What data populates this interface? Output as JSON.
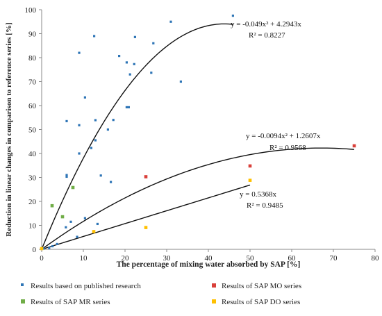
{
  "chart_data": {
    "type": "scatter",
    "xlabel": "The percentage of mixing water absorbed by SAP [%]",
    "ylabel": "Reduction in linear changes in comparison to reference series [%]",
    "xlim": [
      0,
      80
    ],
    "ylim": [
      0,
      100
    ],
    "x_ticks": [
      0,
      10,
      20,
      30,
      40,
      50,
      60,
      70,
      80
    ],
    "y_ticks": [
      0,
      10,
      20,
      30,
      40,
      50,
      60,
      70,
      80,
      90,
      100
    ],
    "grid": false,
    "legend_position": "bottom",
    "series": [
      {
        "name": "Results based on published research",
        "color": "#2e75b6",
        "marker": "square",
        "points": [
          [
            45.9,
            97.5
          ],
          [
            31.0,
            95.0
          ],
          [
            12.6,
            89.0
          ],
          [
            22.4,
            88.6
          ],
          [
            26.8,
            86.0
          ],
          [
            9.0,
            82.0
          ],
          [
            18.6,
            80.7
          ],
          [
            20.4,
            78.0
          ],
          [
            22.2,
            77.3
          ],
          [
            21.2,
            73.0
          ],
          [
            26.3,
            73.7
          ],
          [
            33.4,
            70.0
          ],
          [
            10.4,
            63.4
          ],
          [
            20.4,
            59.3
          ],
          [
            20.9,
            59.3
          ],
          [
            6.0,
            53.5
          ],
          [
            12.9,
            53.9
          ],
          [
            17.2,
            54.0
          ],
          [
            9.0,
            51.8
          ],
          [
            15.9,
            50.0
          ],
          [
            12.9,
            45.5
          ],
          [
            11.9,
            42.3
          ],
          [
            9.0,
            40.0
          ],
          [
            6.0,
            31.0
          ],
          [
            6.0,
            30.3
          ],
          [
            14.2,
            30.8
          ],
          [
            16.6,
            28.1
          ],
          [
            10.4,
            13.0
          ],
          [
            7.0,
            11.5
          ],
          [
            13.4,
            10.6
          ],
          [
            5.8,
            9.2
          ],
          [
            8.5,
            5.2
          ],
          [
            3.7,
            2.2
          ],
          [
            2.6,
            1.3
          ],
          [
            1.8,
            0.6
          ],
          [
            0.5,
            0.3
          ]
        ]
      },
      {
        "name": "Results of SAP MO series",
        "color": "#d9403a",
        "marker": "square",
        "points": [
          [
            25.0,
            30.3
          ],
          [
            50.0,
            34.8
          ],
          [
            75.0,
            43.2
          ]
        ]
      },
      {
        "name": "Results of SAP MR series",
        "color": "#70ad47",
        "marker": "square",
        "points": [
          [
            2.5,
            18.2
          ],
          [
            5.0,
            13.6
          ],
          [
            7.5,
            25.8
          ]
        ]
      },
      {
        "name": "Results of SAP DO series",
        "color": "#ffc000",
        "marker": "square",
        "points": [
          [
            0.0,
            0.3
          ],
          [
            12.5,
            7.4
          ],
          [
            25.0,
            9.1
          ],
          [
            50.0,
            28.8
          ]
        ]
      }
    ],
    "trendlines": [
      {
        "a": -0.049,
        "b": 4.2943,
        "x_range": [
          0,
          46
        ],
        "equation": "y = -0.049x² + 4.2943x",
        "r2": "R² = 0.8227"
      },
      {
        "a": -0.0094,
        "b": 1.2607,
        "x_range": [
          0,
          75
        ],
        "equation": "y = -0.0094x² + 1.2607x",
        "r2": "R² = 0.9568"
      },
      {
        "a": 0,
        "b": 0.5368,
        "x_range": [
          0,
          50
        ],
        "equation": "y = 0.5368x",
        "r2": "R² = 0.9485"
      }
    ]
  }
}
